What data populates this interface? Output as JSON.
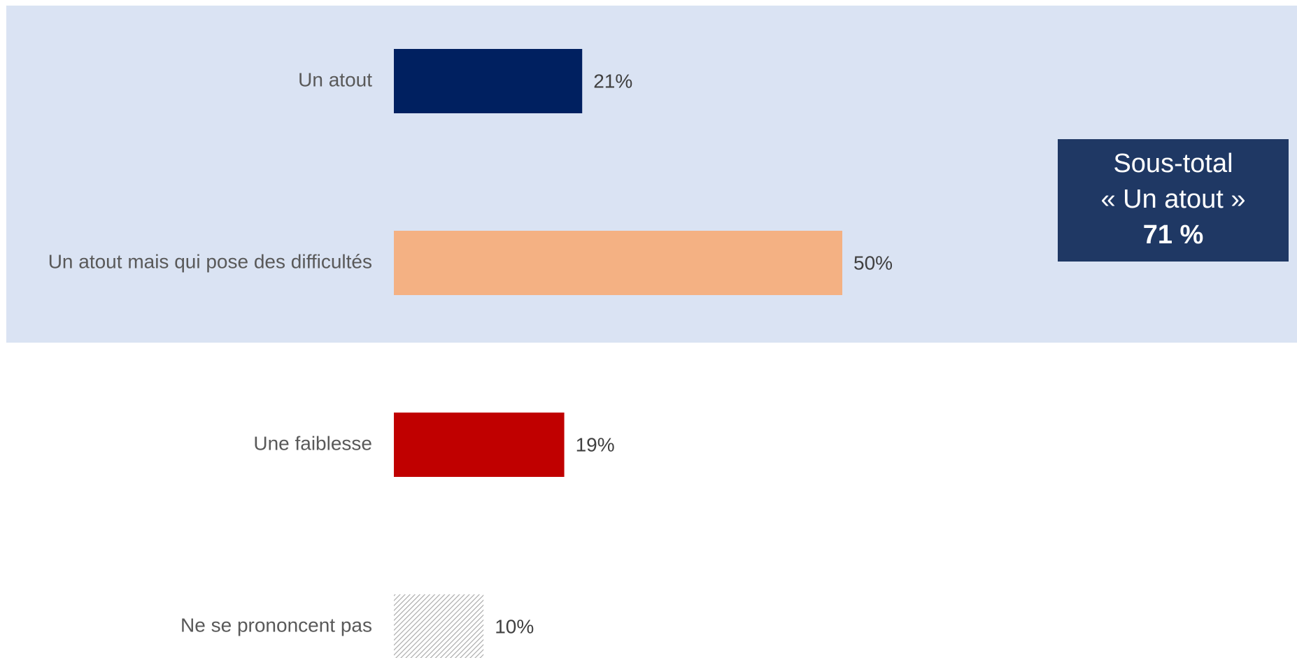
{
  "chart_data": {
    "type": "bar",
    "orientation": "horizontal",
    "categories": [
      "Un atout",
      "Un atout mais qui pose des difficultés",
      "Une faiblesse",
      "Ne se prononcent pas"
    ],
    "values": [
      21,
      50,
      19,
      10
    ],
    "value_labels": [
      "21%",
      "50%",
      "19%",
      "10%"
    ],
    "colors": [
      "#002060",
      "#f4b183",
      "#c00000",
      "#bfbfbf"
    ],
    "patterns": [
      "solid",
      "solid",
      "solid",
      "hatch"
    ],
    "annotation": {
      "lines": [
        "Sous-total",
        "« Un atout »",
        "71 %"
      ],
      "color": "#1f3864"
    }
  }
}
